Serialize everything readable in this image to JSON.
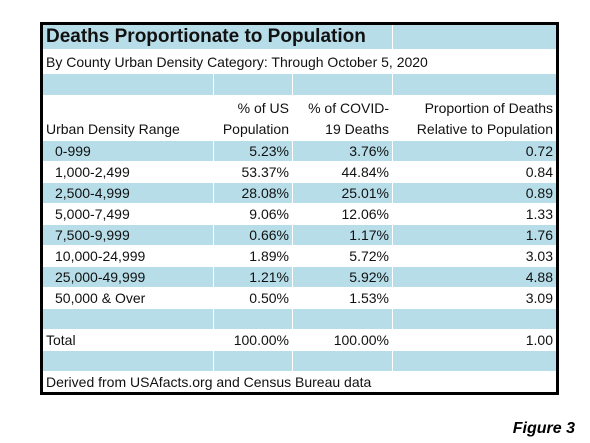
{
  "title": "Deaths Proportionate to Population",
  "subtitle": "By County Urban Density Category: Through October 5, 2020",
  "headers": [
    [
      "Urban Density Range"
    ],
    [
      "% of US",
      "Population"
    ],
    [
      "% of COVID-",
      "19 Deaths"
    ],
    [
      "Proportion of Deaths",
      "Relative to Population"
    ]
  ],
  "rows": [
    [
      "0-999",
      "5.23%",
      "3.76%",
      "0.72"
    ],
    [
      "1,000-2,499",
      "53.37%",
      "44.84%",
      "0.84"
    ],
    [
      "2,500-4,999",
      "28.08%",
      "25.01%",
      "0.89"
    ],
    [
      "5,000-7,499",
      "9.06%",
      "12.06%",
      "1.33"
    ],
    [
      "7,500-9,999",
      "0.66%",
      "1.17%",
      "1.76"
    ],
    [
      "10,000-24,999",
      "1.89%",
      "5.72%",
      "3.03"
    ],
    [
      "25,000-49,999",
      "1.21%",
      "5.92%",
      "4.88"
    ],
    [
      "50,000 & Over",
      "0.50%",
      "1.53%",
      "3.09"
    ]
  ],
  "total": [
    "Total",
    "100.00%",
    "100.00%",
    "1.00"
  ],
  "footer": "Derived from USAfacts.org and Census Bureau data",
  "figure_label": "Figure 3"
}
